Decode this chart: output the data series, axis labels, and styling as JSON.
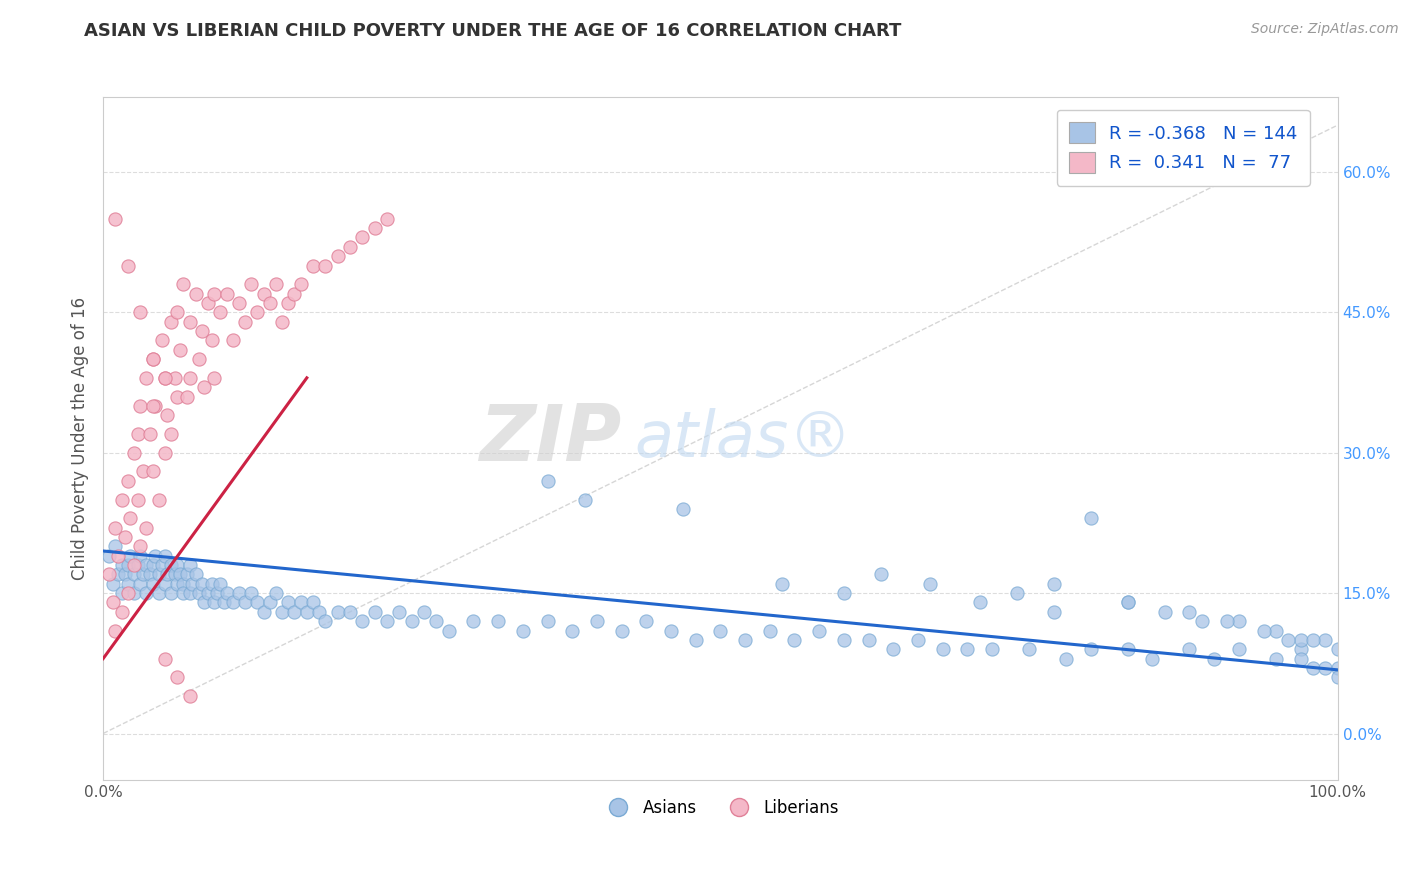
{
  "title": "ASIAN VS LIBERIAN CHILD POVERTY UNDER THE AGE OF 16 CORRELATION CHART",
  "source": "Source: ZipAtlas.com",
  "ylabel": "Child Poverty Under the Age of 16",
  "asian_R": -0.368,
  "asian_N": 144,
  "liberian_R": 0.341,
  "liberian_N": 77,
  "asian_color": "#a8c4e6",
  "asian_edge": "#7aaad4",
  "liberian_color": "#f4b8c8",
  "liberian_edge": "#e08098",
  "asian_trend_color": "#2266cc",
  "liberian_trend_color": "#cc2244",
  "background_color": "#ffffff",
  "grid_color": "#dddddd",
  "title_color": "#333333",
  "axis_label_color": "#555555",
  "right_tick_color": "#4499ff",
  "watermark_zip": "ZIP",
  "watermark_atlas": "atlas",
  "xlim": [
    0.0,
    1.0
  ],
  "ylim": [
    -0.05,
    0.68
  ],
  "yticks_right": [
    0.0,
    0.15,
    0.3,
    0.45,
    0.6
  ],
  "ytick_labels_right": [
    "0.0%",
    "15.0%",
    "30.0%",
    "45.0%",
    "60.0%"
  ],
  "asian_trend_x": [
    0.0,
    1.0
  ],
  "asian_trend_y": [
    0.195,
    0.068
  ],
  "liberian_trend_x": [
    0.0,
    0.165
  ],
  "liberian_trend_y": [
    0.08,
    0.38
  ],
  "diag_line_x": [
    0.0,
    1.0
  ],
  "diag_line_y": [
    0.0,
    0.65
  ],
  "asian_x": [
    0.005,
    0.008,
    0.01,
    0.012,
    0.015,
    0.015,
    0.018,
    0.02,
    0.02,
    0.022,
    0.025,
    0.025,
    0.028,
    0.03,
    0.03,
    0.032,
    0.035,
    0.035,
    0.038,
    0.04,
    0.04,
    0.042,
    0.045,
    0.045,
    0.048,
    0.05,
    0.05,
    0.052,
    0.055,
    0.055,
    0.058,
    0.06,
    0.06,
    0.062,
    0.065,
    0.065,
    0.068,
    0.07,
    0.07,
    0.072,
    0.075,
    0.078,
    0.08,
    0.082,
    0.085,
    0.088,
    0.09,
    0.092,
    0.095,
    0.098,
    0.1,
    0.105,
    0.11,
    0.115,
    0.12,
    0.125,
    0.13,
    0.135,
    0.14,
    0.145,
    0.15,
    0.155,
    0.16,
    0.165,
    0.17,
    0.175,
    0.18,
    0.19,
    0.2,
    0.21,
    0.22,
    0.23,
    0.24,
    0.25,
    0.26,
    0.27,
    0.28,
    0.3,
    0.32,
    0.34,
    0.36,
    0.38,
    0.4,
    0.42,
    0.44,
    0.46,
    0.48,
    0.5,
    0.52,
    0.54,
    0.56,
    0.58,
    0.6,
    0.62,
    0.64,
    0.66,
    0.68,
    0.7,
    0.72,
    0.75,
    0.78,
    0.8,
    0.83,
    0.85,
    0.88,
    0.9,
    0.92,
    0.95,
    0.97,
    0.97,
    0.98,
    0.99,
    1.0,
    1.0,
    0.47,
    0.55,
    0.6,
    0.63,
    0.67,
    0.71,
    0.74,
    0.77,
    0.8,
    0.83,
    0.86,
    0.89,
    0.92,
    0.95,
    0.97,
    0.99,
    0.77,
    0.83,
    0.88,
    0.91,
    0.94,
    0.96,
    0.98,
    1.0,
    0.36,
    0.39
  ],
  "asian_y": [
    0.19,
    0.16,
    0.2,
    0.17,
    0.18,
    0.15,
    0.17,
    0.18,
    0.16,
    0.19,
    0.17,
    0.15,
    0.18,
    0.19,
    0.16,
    0.17,
    0.18,
    0.15,
    0.17,
    0.18,
    0.16,
    0.19,
    0.17,
    0.15,
    0.18,
    0.19,
    0.16,
    0.17,
    0.18,
    0.15,
    0.17,
    0.18,
    0.16,
    0.17,
    0.16,
    0.15,
    0.17,
    0.18,
    0.15,
    0.16,
    0.17,
    0.15,
    0.16,
    0.14,
    0.15,
    0.16,
    0.14,
    0.15,
    0.16,
    0.14,
    0.15,
    0.14,
    0.15,
    0.14,
    0.15,
    0.14,
    0.13,
    0.14,
    0.15,
    0.13,
    0.14,
    0.13,
    0.14,
    0.13,
    0.14,
    0.13,
    0.12,
    0.13,
    0.13,
    0.12,
    0.13,
    0.12,
    0.13,
    0.12,
    0.13,
    0.12,
    0.11,
    0.12,
    0.12,
    0.11,
    0.12,
    0.11,
    0.12,
    0.11,
    0.12,
    0.11,
    0.1,
    0.11,
    0.1,
    0.11,
    0.1,
    0.11,
    0.1,
    0.1,
    0.09,
    0.1,
    0.09,
    0.09,
    0.09,
    0.09,
    0.08,
    0.09,
    0.09,
    0.08,
    0.09,
    0.08,
    0.09,
    0.08,
    0.09,
    0.08,
    0.07,
    0.07,
    0.07,
    0.06,
    0.24,
    0.16,
    0.15,
    0.17,
    0.16,
    0.14,
    0.15,
    0.13,
    0.23,
    0.14,
    0.13,
    0.12,
    0.12,
    0.11,
    0.1,
    0.1,
    0.16,
    0.14,
    0.13,
    0.12,
    0.11,
    0.1,
    0.1,
    0.09,
    0.27,
    0.25
  ],
  "liberian_x": [
    0.005,
    0.008,
    0.01,
    0.01,
    0.012,
    0.015,
    0.015,
    0.018,
    0.02,
    0.02,
    0.022,
    0.025,
    0.025,
    0.028,
    0.028,
    0.03,
    0.03,
    0.032,
    0.035,
    0.035,
    0.038,
    0.04,
    0.04,
    0.042,
    0.045,
    0.048,
    0.05,
    0.05,
    0.052,
    0.055,
    0.055,
    0.058,
    0.06,
    0.06,
    0.062,
    0.065,
    0.068,
    0.07,
    0.07,
    0.075,
    0.078,
    0.08,
    0.082,
    0.085,
    0.088,
    0.09,
    0.09,
    0.095,
    0.1,
    0.105,
    0.11,
    0.115,
    0.12,
    0.125,
    0.13,
    0.135,
    0.14,
    0.145,
    0.15,
    0.155,
    0.16,
    0.17,
    0.18,
    0.19,
    0.2,
    0.21,
    0.22,
    0.23,
    0.01,
    0.02,
    0.03,
    0.04,
    0.05,
    0.04,
    0.05,
    0.06,
    0.07
  ],
  "liberian_y": [
    0.17,
    0.14,
    0.22,
    0.11,
    0.19,
    0.25,
    0.13,
    0.21,
    0.27,
    0.15,
    0.23,
    0.3,
    0.18,
    0.32,
    0.25,
    0.35,
    0.2,
    0.28,
    0.38,
    0.22,
    0.32,
    0.4,
    0.28,
    0.35,
    0.25,
    0.42,
    0.38,
    0.3,
    0.34,
    0.44,
    0.32,
    0.38,
    0.45,
    0.36,
    0.41,
    0.48,
    0.36,
    0.44,
    0.38,
    0.47,
    0.4,
    0.43,
    0.37,
    0.46,
    0.42,
    0.47,
    0.38,
    0.45,
    0.47,
    0.42,
    0.46,
    0.44,
    0.48,
    0.45,
    0.47,
    0.46,
    0.48,
    0.44,
    0.46,
    0.47,
    0.48,
    0.5,
    0.5,
    0.51,
    0.52,
    0.53,
    0.54,
    0.55,
    0.55,
    0.5,
    0.45,
    0.4,
    0.38,
    0.35,
    0.08,
    0.06,
    0.04
  ]
}
